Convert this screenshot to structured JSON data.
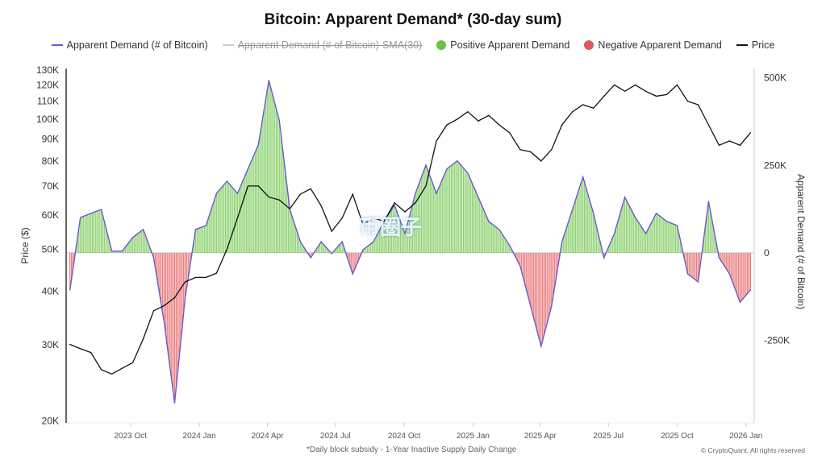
{
  "chart_data": {
    "type": "line",
    "title": "Bitcoin: Apparent Demand* (30-day sum)",
    "legend": [
      {
        "label": "Apparent Demand (# of Bitcoin)",
        "color": "#6a5acd",
        "kind": "line"
      },
      {
        "label": "Apparent Demand (# of Bitcoin)-SMA(30)",
        "color": "#bbbbbb",
        "kind": "line",
        "hidden": true
      },
      {
        "label": "Positive Apparent Demand",
        "color": "#6cc04a",
        "kind": "dot"
      },
      {
        "label": "Negative Apparent Demand",
        "color": "#e05a5a",
        "kind": "dot"
      },
      {
        "label": "Price",
        "color": "#111111",
        "kind": "line"
      }
    ],
    "legend_position": "top",
    "x": {
      "start": "2023-07-12",
      "step_days": 14,
      "tick_labels": [
        "2023 Oct",
        "2024 Jan",
        "2024 Apr",
        "2024 Jul",
        "2024 Oct",
        "2025 Jan",
        "2025 Apr",
        "2025 Jul",
        "2025 Oct",
        "2026 Jan"
      ],
      "tick_dates": [
        "2023-10-01",
        "2024-01-01",
        "2024-04-01",
        "2024-07-01",
        "2024-10-01",
        "2025-01-01",
        "2025-04-01",
        "2025-07-01",
        "2025-10-01",
        "2026-01-01"
      ],
      "range": [
        "2023-07-08",
        "2026-01-12"
      ]
    },
    "y_left": {
      "label": "Price ($)",
      "scale": "log",
      "range": [
        19800,
        131000
      ],
      "ticks": [
        20000,
        30000,
        40000,
        50000,
        60000,
        70000,
        80000,
        90000,
        100000,
        110000,
        120000,
        130000
      ],
      "tick_labels": [
        "20K",
        "30K",
        "40K",
        "50K",
        "60K",
        "70K",
        "80K",
        "90K",
        "100K",
        "110K",
        "120K",
        "130K"
      ]
    },
    "y_right": {
      "label": "Apparent Demand (# of Bitcoin)",
      "range": [
        -486000,
        527000
      ],
      "ticks": [
        500000,
        250000,
        0,
        -250000
      ],
      "tick_labels": [
        "500K",
        "250K",
        "0",
        "-250K"
      ]
    },
    "series": [
      {
        "name": "Price",
        "axis": "left",
        "values": [
          30100,
          29400,
          28800,
          26300,
          25700,
          26500,
          27300,
          31000,
          36000,
          37000,
          38600,
          42000,
          43000,
          43000,
          44000,
          50000,
          59000,
          70000,
          70000,
          66000,
          65000,
          62000,
          67000,
          69000,
          63000,
          55000,
          59000,
          67000,
          57000,
          59000,
          58000,
          64000,
          61000,
          64000,
          70000,
          89000,
          97000,
          100000,
          104000,
          99000,
          102000,
          97000,
          93000,
          85000,
          84000,
          80000,
          85000,
          97000,
          104000,
          108000,
          106000,
          113000,
          120000,
          116000,
          120000,
          116000,
          113000,
          114000,
          120000,
          110000,
          108000,
          97000,
          87000,
          89000,
          87000,
          93000
        ]
      },
      {
        "name": "Apparent Demand (# of Bitcoin)",
        "axis": "right",
        "values": [
          -106000,
          101000,
          113000,
          124000,
          5000,
          5000,
          44000,
          67000,
          -14000,
          -198000,
          -429000,
          -129000,
          67000,
          78000,
          170000,
          205000,
          170000,
          240000,
          309000,
          493000,
          378000,
          124000,
          32000,
          -14000,
          32000,
          -2000,
          32000,
          -60000,
          9000,
          32000,
          90000,
          136000,
          55000,
          170000,
          251000,
          170000,
          240000,
          263000,
          228000,
          159000,
          90000,
          67000,
          21000,
          -37000,
          -152000,
          -267000,
          -152000,
          32000,
          124000,
          217000,
          113000,
          -14000,
          55000,
          159000,
          101000,
          55000,
          113000,
          90000,
          78000,
          -60000,
          -83000,
          147000,
          -14000,
          -60000,
          -141000,
          -106000
        ]
      }
    ]
  },
  "footnote": "*Daily block subsidy - 1-Year Inactive Supply Daily Change",
  "copyright": "© CryptoQuant. All rights reserved",
  "watermark": "币圈子"
}
